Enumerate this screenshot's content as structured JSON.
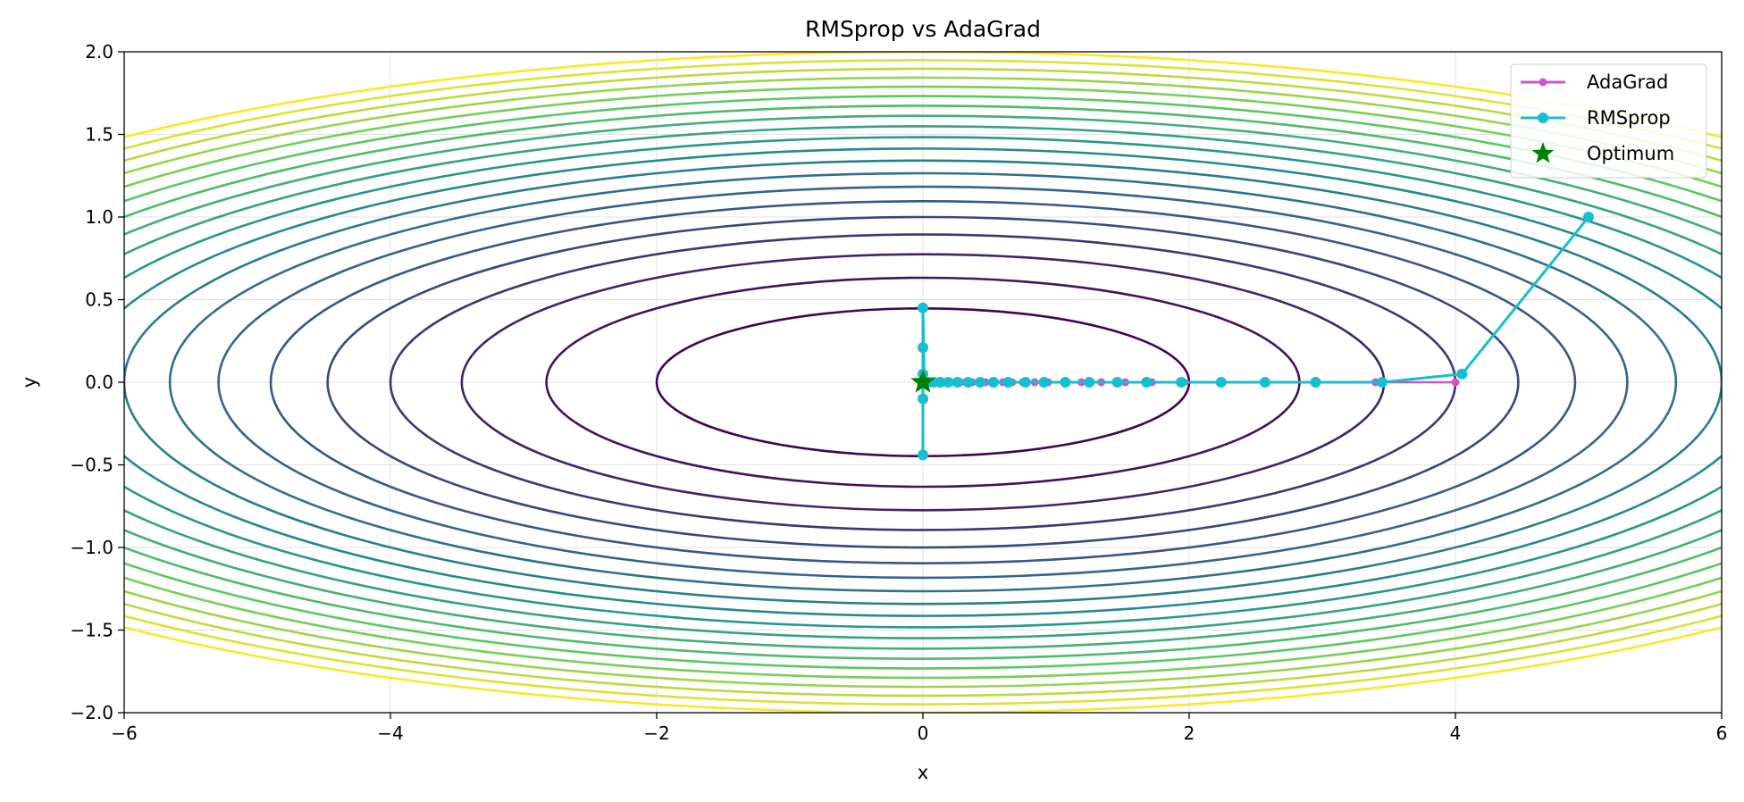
{
  "chart_data": {
    "type": "line",
    "title": "RMSprop vs AdaGrad",
    "xlabel": "x",
    "ylabel": "y",
    "xlim": [
      -6,
      6
    ],
    "ylim": [
      -2,
      2
    ],
    "x_ticks": [
      -6,
      -4,
      -2,
      0,
      2,
      4,
      6
    ],
    "y_ticks": [
      -2.0,
      -1.5,
      -1.0,
      -0.5,
      0.0,
      0.5,
      1.0,
      1.5,
      2.0
    ],
    "x_tick_labels": [
      "−6",
      "−4",
      "−2",
      "0",
      "2",
      "4",
      "6"
    ],
    "y_tick_labels": [
      "−2.0",
      "−1.5",
      "−1.0",
      "−0.5",
      "0.0",
      "0.5",
      "1.0",
      "1.5",
      "2.0"
    ],
    "grid": true,
    "legend_position": "top-right",
    "contour": {
      "function": "f(x, y) = x^2 + 20*y^2",
      "levels": [
        4,
        8,
        12,
        16,
        20,
        24,
        28,
        32,
        36,
        40,
        44,
        48,
        52,
        56,
        60,
        64,
        68,
        72,
        76,
        80
      ],
      "colormap": [
        "#440154",
        "#3b528b",
        "#21918c",
        "#5ec962",
        "#fde725"
      ]
    },
    "series": [
      {
        "name": "AdaGrad",
        "color": "#cc55cc",
        "marker": "small-circle",
        "x": [
          4.0,
          3.4,
          2.95,
          2.57,
          2.24,
          1.96,
          1.72,
          1.52,
          1.34,
          1.19,
          1.06,
          0.94,
          0.84,
          0.75,
          0.67,
          0.6,
          0.53,
          0.47,
          0.42,
          0.37,
          0.32,
          0.28,
          0.24,
          0.2,
          0.16,
          0.12,
          0.08,
          0.04,
          0.0
        ],
        "y": [
          0,
          0,
          0,
          0,
          0,
          0,
          0,
          0,
          0,
          0,
          0,
          0,
          0,
          0,
          0,
          0,
          0,
          0,
          0,
          0,
          0,
          0,
          0,
          0,
          0,
          0,
          0,
          0,
          0
        ]
      },
      {
        "name": "RMSprop",
        "color": "#17becf",
        "marker": "circle",
        "x": [
          5.0,
          4.05,
          3.45,
          2.95,
          2.57,
          2.24,
          1.94,
          1.68,
          1.46,
          1.25,
          1.07,
          0.91,
          0.77,
          0.64,
          0.53,
          0.43,
          0.34,
          0.26,
          0.19,
          0.13,
          0.08,
          0.04,
          0.01,
          0.0,
          0.0,
          0.0,
          0.0,
          0.0,
          0.0
        ],
        "y": [
          1.0,
          0.05,
          0.0,
          0.0,
          0.0,
          0.0,
          0.0,
          0.0,
          0.0,
          0.0,
          0.0,
          0.0,
          0.0,
          0.0,
          0.0,
          0.0,
          0.0,
          0.0,
          0.0,
          0.0,
          0.0,
          0.0,
          0.0,
          0.45,
          0.21,
          0.05,
          -0.1,
          -0.44,
          0.0
        ]
      }
    ],
    "annotations": [
      {
        "name": "Optimum",
        "x": 0,
        "y": 0,
        "color": "#008000",
        "marker": "star"
      }
    ]
  }
}
